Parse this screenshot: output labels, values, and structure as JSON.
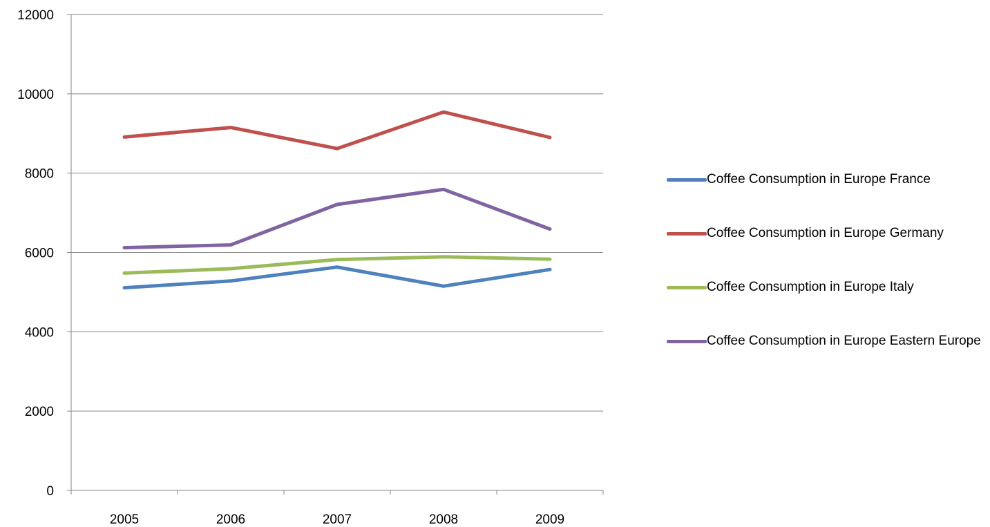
{
  "chart_data": {
    "type": "line",
    "title": "",
    "xlabel": "",
    "ylabel": "",
    "categories": [
      "2005",
      "2006",
      "2007",
      "2008",
      "2009"
    ],
    "ylim": [
      0,
      12000
    ],
    "yticks": [
      "0",
      "2000",
      "4000",
      "6000",
      "8000",
      "10000",
      "12000"
    ],
    "grid": true,
    "legend_position": "right",
    "series": [
      {
        "name": "Coffee Consumption in Europe France",
        "color": "#4F81BD",
        "values": [
          5110,
          5280,
          5630,
          5150,
          5570
        ]
      },
      {
        "name": "Coffee Consumption in Europe Germany",
        "color": "#C0504D",
        "values": [
          8910,
          9150,
          8620,
          9540,
          8900
        ]
      },
      {
        "name": "Coffee Consumption in Europe Italy",
        "color": "#9BBB59",
        "values": [
          5480,
          5590,
          5820,
          5890,
          5830
        ]
      },
      {
        "name": "Coffee Consumption in Europe Eastern Europe",
        "color": "#8064A2",
        "values": [
          6120,
          6190,
          7210,
          7590,
          6590
        ]
      }
    ]
  }
}
